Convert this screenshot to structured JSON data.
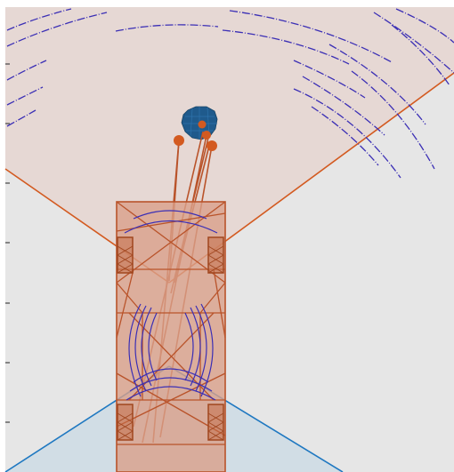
{
  "colors": {
    "page_background": "#ffffff",
    "plot_background": "#e6e6e6",
    "front_sensor_fan_fill": "#e6d8d4",
    "front_sensor_fan_edge": "#d35a20",
    "rear_sensor_fan_fill": "#d1dde5",
    "rear_sensor_fan_edge": "#1f78c1",
    "vehicle_fill": "#d9a08a",
    "vehicle_edge": "#b9532a",
    "wheel_edge": "#a0461f",
    "range_arcs": "#3b2fb5",
    "pedestrian_fill": "#1f5a8c",
    "detection_points": "#d35a20",
    "axis_ticks": "#444444"
  },
  "icons": {
    "vehicle": "car-outline-icon",
    "pedestrian": "pedestrian-icon"
  }
}
